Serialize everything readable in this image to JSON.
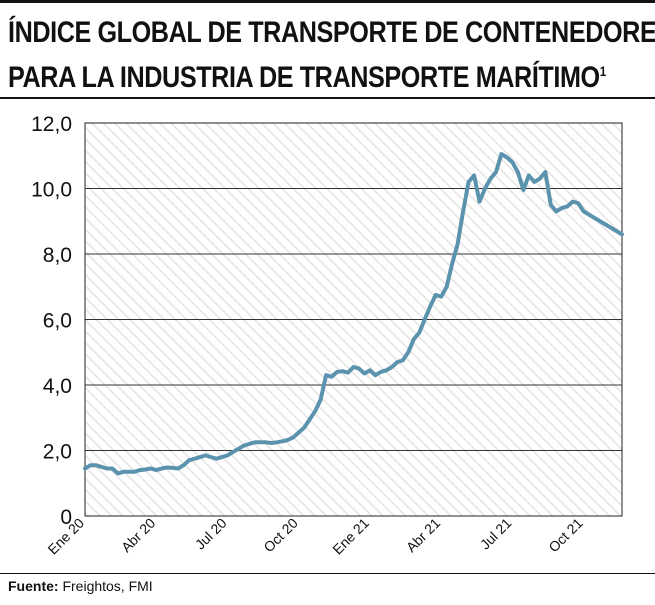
{
  "header": {
    "title_line1": "ÍNDICE GLOBAL DE TRANSPORTE DE CONTENEDORES",
    "title_line2": "PARA LA INDUSTRIA DE TRANSPORTE MARÍTIMO",
    "footnote_mark": "1"
  },
  "footer": {
    "source_label": "Fuente:",
    "source_text": "Freightos, FMI"
  },
  "chart_data": {
    "type": "line",
    "title": "ÍNDICE GLOBAL DE TRANSPORTE DE CONTENEDORES PARA LA INDUSTRIA DE TRANSPORTE MARÍTIMO",
    "xlabel": "",
    "ylabel": "",
    "ylim": [
      0,
      12
    ],
    "yticks": [
      0,
      2,
      4,
      6,
      8,
      10,
      12
    ],
    "ytick_labels": [
      "0",
      "2,0",
      "4,0",
      "6,0",
      "8,0",
      "10,0",
      "12,0"
    ],
    "xticks": [
      0,
      13,
      26,
      39,
      52,
      65,
      78,
      91
    ],
    "xtick_labels": [
      "Ene 20",
      "Abr 20",
      "Jul 20",
      "Oct 20",
      "Ene 21",
      "Abr 21",
      "Jul 21",
      "Oct 21"
    ],
    "x_unit": "weeks since Ene 20",
    "grid": true,
    "line_color": "#5b93ae",
    "series": [
      {
        "name": "",
        "x": [
          0,
          1,
          2,
          3,
          4,
          5,
          6,
          7,
          8,
          9,
          10,
          11,
          12,
          13,
          14,
          15,
          16,
          17,
          18,
          19,
          20,
          21,
          22,
          23,
          24,
          25,
          26,
          27,
          28,
          29,
          30,
          31,
          32,
          33,
          34,
          35,
          36,
          37,
          38,
          39,
          40,
          41,
          42,
          43,
          44,
          45,
          46,
          47,
          48,
          49,
          50,
          51,
          52,
          53,
          54,
          55,
          56,
          57,
          58,
          59,
          60,
          61,
          62,
          63,
          64,
          65,
          66,
          67,
          68,
          69,
          70,
          71,
          72,
          73,
          74,
          75,
          76,
          77,
          78,
          79,
          80,
          81,
          82,
          83,
          84,
          85,
          86,
          87,
          88,
          89,
          90,
          91,
          92,
          93,
          94,
          95,
          96,
          97,
          98
        ],
        "values": [
          1.45,
          1.55,
          1.55,
          1.5,
          1.45,
          1.45,
          1.3,
          1.35,
          1.35,
          1.35,
          1.4,
          1.42,
          1.45,
          1.4,
          1.45,
          1.48,
          1.47,
          1.45,
          1.55,
          1.7,
          1.75,
          1.8,
          1.85,
          1.8,
          1.75,
          1.8,
          1.85,
          1.95,
          2.05,
          2.15,
          2.2,
          2.25,
          2.25,
          2.25,
          2.23,
          2.25,
          2.28,
          2.32,
          2.4,
          2.55,
          2.7,
          2.95,
          3.2,
          3.55,
          4.3,
          4.25,
          4.4,
          4.42,
          4.38,
          4.55,
          4.5,
          4.35,
          4.45,
          4.3,
          4.4,
          4.45,
          4.55,
          4.7,
          4.75,
          5.0,
          5.4,
          5.6,
          6.0,
          6.4,
          6.75,
          6.7,
          7.0,
          7.7,
          8.3,
          9.3,
          10.2,
          10.4,
          9.6,
          10.0,
          10.3,
          10.5,
          11.05,
          10.95,
          10.8,
          10.5,
          9.95,
          10.4,
          10.2,
          10.3,
          10.5,
          9.5,
          9.3,
          9.4,
          9.45,
          9.6,
          9.55,
          9.3,
          9.2,
          9.1,
          9.0,
          8.9,
          8.8,
          8.7,
          8.6
        ]
      }
    ]
  }
}
